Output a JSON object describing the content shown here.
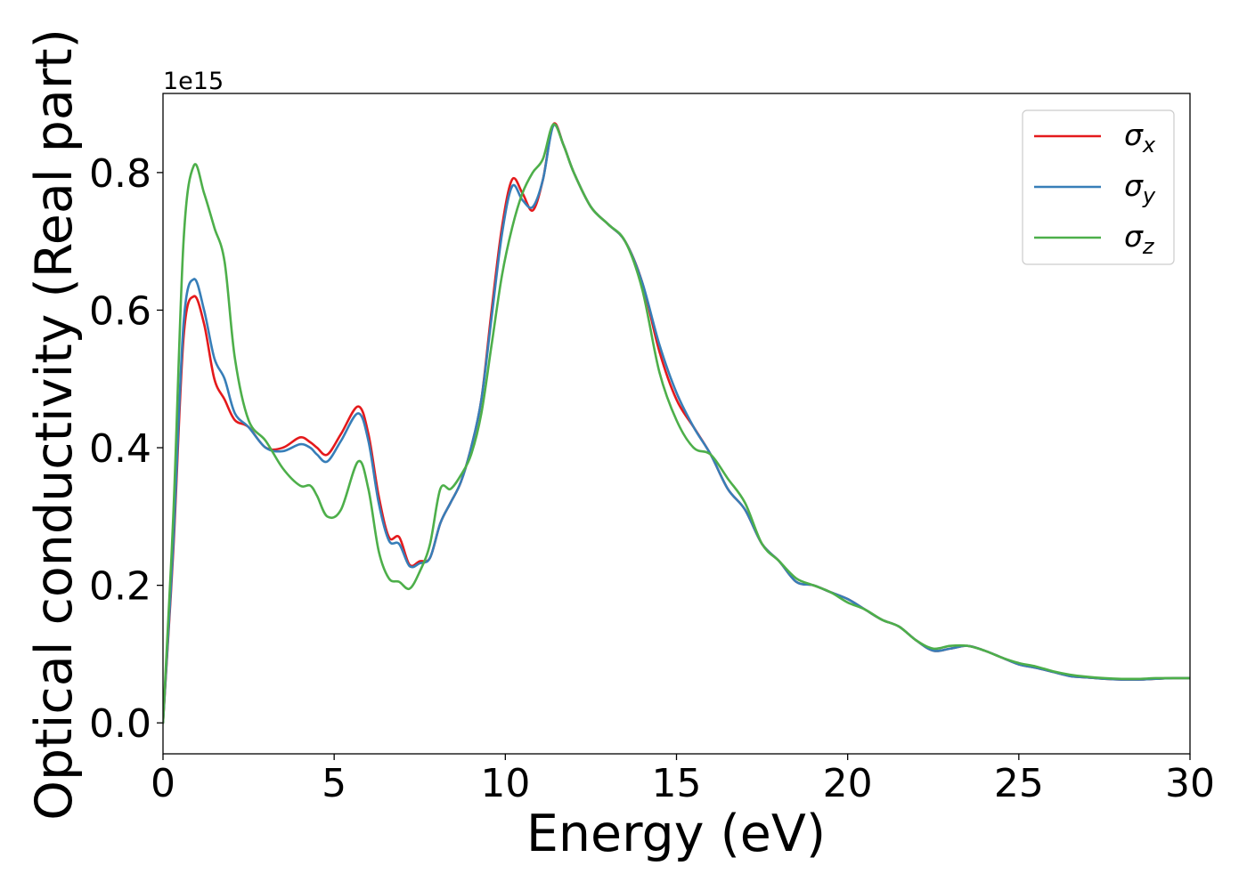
{
  "chart_data": {
    "type": "line",
    "title": "",
    "xlabel": "Energy (eV)",
    "ylabel": "Optical conductivity (Real part)",
    "offset_label": "1e15",
    "xlim": [
      0,
      30
    ],
    "ylim": [
      -0.045,
      0.915
    ],
    "xticks": [
      0,
      5,
      10,
      15,
      20,
      25,
      30
    ],
    "xtick_labels": [
      "0",
      "5",
      "10",
      "15",
      "20",
      "25",
      "30"
    ],
    "yticks": [
      0.0,
      0.2,
      0.4,
      0.6,
      0.8
    ],
    "ytick_labels": [
      "0.0",
      "0.2",
      "0.4",
      "0.6",
      "0.8"
    ],
    "grid": false,
    "legend_position": "top-right",
    "x": [
      0,
      0.3,
      0.6,
      0.9,
      1.2,
      1.5,
      1.8,
      2.1,
      2.5,
      3.0,
      3.5,
      4.0,
      4.3,
      4.5,
      4.8,
      5.2,
      5.7,
      6.0,
      6.3,
      6.6,
      6.9,
      7.2,
      7.5,
      7.8,
      8.1,
      8.4,
      8.7,
      9.0,
      9.3,
      9.6,
      9.9,
      10.2,
      10.5,
      10.8,
      11.1,
      11.4,
      11.7,
      12.0,
      12.5,
      13.0,
      13.5,
      14.0,
      14.5,
      15.0,
      15.5,
      16.0,
      16.5,
      17.0,
      17.5,
      18.0,
      18.5,
      19.0,
      19.5,
      20.0,
      20.5,
      21.0,
      21.5,
      22.0,
      22.5,
      23.0,
      23.5,
      24.0,
      24.5,
      25.0,
      25.5,
      26.0,
      26.5,
      27.0,
      27.5,
      28.0,
      28.5,
      29.0,
      29.5,
      30.0
    ],
    "series": [
      {
        "name": "σ_x",
        "symbol": "σ",
        "subscript": "x",
        "color": "#e41a1c",
        "values": [
          0.0,
          0.25,
          0.56,
          0.62,
          0.58,
          0.5,
          0.47,
          0.44,
          0.43,
          0.4,
          0.4,
          0.415,
          0.408,
          0.4,
          0.39,
          0.42,
          0.46,
          0.42,
          0.33,
          0.27,
          0.27,
          0.23,
          0.235,
          0.24,
          0.29,
          0.32,
          0.35,
          0.4,
          0.47,
          0.6,
          0.72,
          0.79,
          0.77,
          0.745,
          0.79,
          0.87,
          0.84,
          0.8,
          0.75,
          0.725,
          0.7,
          0.64,
          0.54,
          0.47,
          0.43,
          0.39,
          0.34,
          0.31,
          0.26,
          0.235,
          0.205,
          0.2,
          0.19,
          0.18,
          0.165,
          0.15,
          0.14,
          0.12,
          0.105,
          0.108,
          0.112,
          0.105,
          0.095,
          0.085,
          0.08,
          0.074,
          0.068,
          0.066,
          0.064,
          0.063,
          0.063,
          0.064,
          0.065,
          0.065
        ]
      },
      {
        "name": "σ_y",
        "symbol": "σ",
        "subscript": "y",
        "color": "#377eb8",
        "values": [
          0.0,
          0.26,
          0.58,
          0.645,
          0.6,
          0.53,
          0.5,
          0.45,
          0.43,
          0.4,
          0.395,
          0.405,
          0.4,
          0.39,
          0.38,
          0.41,
          0.45,
          0.41,
          0.32,
          0.265,
          0.26,
          0.228,
          0.232,
          0.24,
          0.29,
          0.32,
          0.35,
          0.4,
          0.47,
          0.59,
          0.71,
          0.78,
          0.76,
          0.75,
          0.79,
          0.868,
          0.84,
          0.8,
          0.75,
          0.725,
          0.7,
          0.64,
          0.55,
          0.48,
          0.43,
          0.39,
          0.34,
          0.31,
          0.26,
          0.235,
          0.205,
          0.2,
          0.19,
          0.18,
          0.165,
          0.15,
          0.14,
          0.12,
          0.105,
          0.108,
          0.112,
          0.105,
          0.095,
          0.085,
          0.08,
          0.074,
          0.068,
          0.066,
          0.064,
          0.063,
          0.063,
          0.064,
          0.065,
          0.065
        ]
      },
      {
        "name": "σ_z",
        "symbol": "σ",
        "subscript": "z",
        "color": "#4daf4a",
        "values": [
          0.0,
          0.3,
          0.7,
          0.81,
          0.77,
          0.72,
          0.67,
          0.53,
          0.44,
          0.41,
          0.37,
          0.345,
          0.345,
          0.33,
          0.3,
          0.31,
          0.38,
          0.34,
          0.25,
          0.21,
          0.205,
          0.195,
          0.22,
          0.26,
          0.34,
          0.34,
          0.36,
          0.39,
          0.45,
          0.55,
          0.65,
          0.72,
          0.77,
          0.8,
          0.82,
          0.87,
          0.84,
          0.8,
          0.75,
          0.725,
          0.7,
          0.63,
          0.51,
          0.44,
          0.4,
          0.39,
          0.355,
          0.32,
          0.26,
          0.235,
          0.21,
          0.2,
          0.19,
          0.175,
          0.165,
          0.15,
          0.14,
          0.12,
          0.108,
          0.112,
          0.112,
          0.105,
          0.095,
          0.087,
          0.082,
          0.075,
          0.07,
          0.067,
          0.065,
          0.064,
          0.064,
          0.065,
          0.065,
          0.065
        ]
      }
    ]
  }
}
